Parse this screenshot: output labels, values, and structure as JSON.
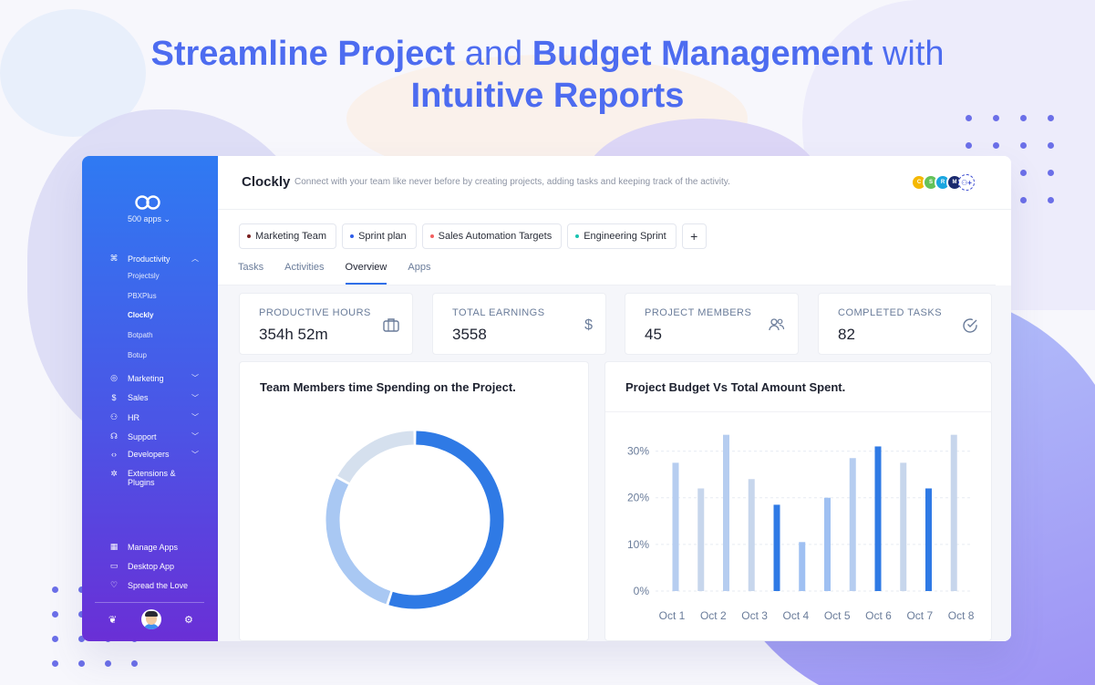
{
  "headline": {
    "part1": "Streamline Project",
    "part2": " and ",
    "part3": "Budget Management",
    "part4": " with ",
    "part5": "Intuitive Reports"
  },
  "sidebar": {
    "apps_count": "500 apps ⌄",
    "productivity": "Productivity",
    "sub_items": [
      "Projectsly",
      "PBXPlus",
      "Clockly",
      "Botpath",
      "Botup"
    ],
    "items": [
      "Marketing",
      "Sales",
      "HR",
      "Support",
      "Developers",
      "Extensions &",
      "Plugins"
    ],
    "bottom": [
      "Manage Apps",
      "Desktop App",
      "Spread the Love"
    ]
  },
  "topbar": {
    "brand": "Clockly",
    "tagline": "Connect with your team like never before by creating projects, adding tasks and keeping track of the activity.",
    "avatars": [
      "C",
      "S",
      "R",
      "M"
    ]
  },
  "chips": [
    {
      "label": "Marketing Team",
      "color": "#7a2020"
    },
    {
      "label": "Sprint plan",
      "color": "#2f5de8"
    },
    {
      "label": "Sales Automation Targets",
      "color": "#f26060"
    },
    {
      "label": "Engineering Sprint",
      "color": "#18c3b0"
    }
  ],
  "add_chip": "+",
  "tabs": [
    "Tasks",
    "Activities",
    "Overview",
    "Apps"
  ],
  "stats": [
    {
      "label": "Productive Hours",
      "value": "354h 52m",
      "icon": "briefcase-icon"
    },
    {
      "label": "Total Earnings",
      "value": "3558",
      "icon": "dollar-icon"
    },
    {
      "label": "Project Members",
      "value": "45",
      "icon": "users-icon"
    },
    {
      "label": "Completed Tasks",
      "value": "82",
      "icon": "check-circle-icon"
    }
  ],
  "panels": {
    "donut_title": "Team Members time Spending on the Project.",
    "bar_title": "Project Budget Vs Total Amount Spent."
  },
  "chart_data": [
    {
      "type": "pie",
      "title": "Team Members time Spending on the Project.",
      "slices": [
        {
          "value": 55,
          "color": "#2f7ae5"
        },
        {
          "value": 28,
          "color": "#a9c8f3"
        },
        {
          "value": 17,
          "color": "#d5e0ee"
        }
      ]
    },
    {
      "type": "bar",
      "title": "Project Budget Vs Total Amount Spent.",
      "categories": [
        "Oct 1",
        "Oct 2",
        "Oct 3",
        "Oct 4",
        "Oct 5",
        "Oct 6",
        "Oct 7",
        "Oct 8"
      ],
      "y_ticks": [
        "0%",
        "10%",
        "20%",
        "30%"
      ],
      "ylim": [
        0,
        35
      ],
      "series": [
        {
          "values": [
            27.5,
            22,
            33.5,
            10.5,
            28.5,
            31,
            22,
            33.5
          ]
        },
        {
          "values": [
            33.5,
            24,
            18.5,
            20,
            27.5,
            27.5,
            33.5,
            null
          ]
        }
      ],
      "bars": [
        {
          "value": 27.5,
          "color": "#b6cdf0"
        },
        {
          "value": 22,
          "color": "#c7d6ec"
        },
        {
          "value": 33.5,
          "color": "#b6cdf0"
        },
        {
          "value": 24,
          "color": "#c7d6ec"
        },
        {
          "value": 18.5,
          "color": "#2f7ae5"
        },
        {
          "value": 10.5,
          "color": "#9fc0f2"
        },
        {
          "value": 20,
          "color": "#9fc0f2"
        },
        {
          "value": 28.5,
          "color": "#b6cdf0"
        },
        {
          "value": 31,
          "color": "#2f7ae5"
        },
        {
          "value": 27.5,
          "color": "#c7d6ec"
        },
        {
          "value": 22,
          "color": "#2f7ae5"
        },
        {
          "value": 33.5,
          "color": "#c7d6ec"
        }
      ]
    }
  ]
}
